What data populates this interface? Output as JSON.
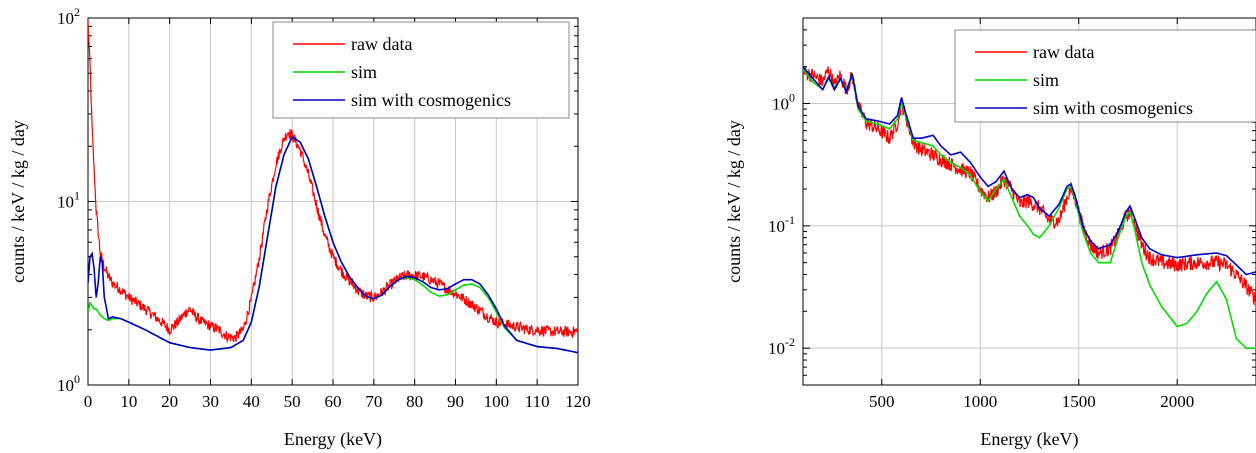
{
  "chart_data": [
    {
      "type": "line",
      "xlabel": "Energy (keV)",
      "ylabel": "counts / keV / kg / day",
      "xlim": [
        0,
        120
      ],
      "ylim": [
        1,
        100
      ],
      "yscale": "log",
      "grid": true,
      "legend_position": "top-right",
      "x_ticks": [
        "0",
        "10",
        "20",
        "30",
        "40",
        "50",
        "60",
        "70",
        "80",
        "90",
        "100",
        "110",
        "120"
      ],
      "y_ticks": [
        {
          "base": "10",
          "exp": "0"
        },
        {
          "base": "10",
          "exp": "1"
        },
        {
          "base": "10",
          "exp": "2"
        }
      ],
      "series": [
        {
          "name": "raw data",
          "color": "#ff0000",
          "noise": 0.03,
          "x": [
            0,
            0.5,
            1,
            2,
            3,
            4,
            5,
            6,
            8,
            10,
            12,
            14,
            16,
            18,
            20,
            22,
            24,
            25,
            26,
            28,
            30,
            32,
            34,
            36,
            38,
            40,
            42,
            44,
            46,
            48,
            49,
            50,
            52,
            54,
            56,
            58,
            60,
            62,
            64,
            66,
            68,
            70,
            72,
            74,
            76,
            78,
            80,
            82,
            84,
            86,
            88,
            90,
            92,
            94,
            96,
            98,
            100,
            102,
            104,
            106,
            108,
            110,
            112,
            114,
            116,
            118,
            120
          ],
          "y": [
            95,
            55,
            25,
            9,
            5.2,
            4.4,
            3.9,
            3.6,
            3.3,
            3.0,
            2.8,
            2.6,
            2.4,
            2.2,
            2.0,
            2.2,
            2.5,
            2.6,
            2.4,
            2.2,
            2.1,
            2.0,
            1.85,
            1.8,
            2.0,
            2.9,
            5.0,
            9.5,
            16,
            22,
            24,
            23,
            19,
            14,
            9.5,
            6.5,
            5.0,
            4.2,
            3.7,
            3.3,
            3.05,
            3.0,
            3.2,
            3.5,
            3.8,
            3.95,
            3.95,
            3.9,
            3.75,
            3.55,
            3.35,
            3.15,
            2.95,
            2.75,
            2.55,
            2.35,
            2.2,
            2.15,
            2.1,
            2.05,
            2.0,
            2.0,
            1.97,
            1.95,
            1.95,
            1.95,
            1.95
          ]
        },
        {
          "name": "sim",
          "color": "#00dd00",
          "noise": 0,
          "x": [
            0,
            0.5,
            1,
            1.5,
            2,
            3,
            4,
            5,
            6,
            8,
            10,
            14,
            20,
            25,
            30,
            35,
            38,
            40,
            42,
            44,
            46,
            48,
            50,
            52,
            54,
            56,
            58,
            60,
            62,
            64,
            66,
            68,
            70,
            72,
            74,
            76,
            78,
            80,
            82,
            84,
            86,
            88,
            90,
            92,
            94,
            96,
            98,
            100,
            102,
            105,
            110,
            115,
            120
          ],
          "y": [
            2.5,
            2.8,
            2.7,
            2.6,
            2.6,
            2.4,
            2.3,
            2.25,
            2.3,
            2.3,
            2.2,
            2.0,
            1.7,
            1.6,
            1.55,
            1.6,
            1.75,
            2.2,
            3.5,
            6.5,
            12,
            18,
            22.5,
            21,
            17,
            12,
            8.3,
            6.0,
            4.7,
            3.9,
            3.4,
            3.05,
            2.95,
            3.1,
            3.45,
            3.75,
            3.85,
            3.75,
            3.5,
            3.2,
            3.05,
            3.1,
            3.3,
            3.5,
            3.55,
            3.4,
            3.0,
            2.5,
            2.05,
            1.75,
            1.62,
            1.58,
            1.5
          ]
        },
        {
          "name": "sim with cosmogenics",
          "color": "#0000cc",
          "noise": 0,
          "x": [
            0,
            0.5,
            1,
            1.5,
            2,
            2.5,
            3,
            3.5,
            4,
            5,
            6,
            8,
            10,
            14,
            20,
            25,
            30,
            35,
            38,
            40,
            42,
            44,
            46,
            48,
            50,
            52,
            54,
            56,
            58,
            60,
            62,
            64,
            66,
            68,
            70,
            72,
            74,
            76,
            78,
            80,
            82,
            84,
            86,
            88,
            90,
            92,
            94,
            96,
            98,
            100,
            102,
            105,
            110,
            115,
            120
          ],
          "y": [
            3.6,
            5.0,
            5.2,
            4.3,
            3.0,
            3.6,
            5.0,
            4.6,
            3.0,
            2.3,
            2.35,
            2.3,
            2.2,
            2.0,
            1.7,
            1.6,
            1.55,
            1.6,
            1.75,
            2.2,
            3.5,
            6.5,
            12,
            18,
            22.5,
            21,
            17,
            12,
            8.3,
            6.0,
            4.7,
            3.9,
            3.4,
            3.05,
            2.95,
            3.1,
            3.45,
            3.75,
            3.9,
            3.85,
            3.65,
            3.4,
            3.3,
            3.35,
            3.55,
            3.75,
            3.75,
            3.55,
            3.1,
            2.6,
            2.1,
            1.75,
            1.62,
            1.58,
            1.5
          ]
        }
      ]
    },
    {
      "type": "line",
      "xlabel": "Energy (keV)",
      "ylabel": "counts / keV / kg / day",
      "xlim": [
        100,
        2400
      ],
      "ylim": [
        0.005,
        5
      ],
      "yscale": "log",
      "grid": true,
      "legend_position": "top-right",
      "x_ticks": [
        "500",
        "1000",
        "1500",
        "2000"
      ],
      "y_ticks": [
        {
          "base": "10",
          "exp": "-2"
        },
        {
          "base": "10",
          "exp": "-1"
        },
        {
          "base": "10",
          "exp": "0"
        }
      ],
      "series": [
        {
          "name": "raw data",
          "color": "#ff0000",
          "noise": 0.06,
          "x": [
            100,
            150,
            200,
            230,
            260,
            290,
            320,
            350,
            380,
            420,
            480,
            540,
            580,
            600,
            620,
            660,
            700,
            760,
            800,
            850,
            900,
            950,
            1000,
            1040,
            1080,
            1120,
            1160,
            1200,
            1240,
            1270,
            1300,
            1350,
            1400,
            1440,
            1460,
            1480,
            1520,
            1560,
            1600,
            1660,
            1700,
            1740,
            1760,
            1780,
            1820,
            1860,
            1920,
            2000,
            2100,
            2200,
            2250,
            2300,
            2350,
            2400
          ],
          "y": [
            1.8,
            1.7,
            1.5,
            1.9,
            1.4,
            1.7,
            1.3,
            1.7,
            0.95,
            0.7,
            0.62,
            0.52,
            0.7,
            1.0,
            0.8,
            0.48,
            0.42,
            0.38,
            0.35,
            0.32,
            0.29,
            0.27,
            0.2,
            0.17,
            0.19,
            0.24,
            0.2,
            0.15,
            0.16,
            0.15,
            0.14,
            0.11,
            0.11,
            0.17,
            0.2,
            0.17,
            0.1,
            0.07,
            0.06,
            0.065,
            0.085,
            0.12,
            0.13,
            0.11,
            0.07,
            0.055,
            0.05,
            0.048,
            0.05,
            0.05,
            0.048,
            0.04,
            0.032,
            0.025
          ]
        },
        {
          "name": "sim",
          "color": "#00dd00",
          "noise": 0,
          "x": [
            100,
            150,
            200,
            230,
            260,
            290,
            320,
            350,
            380,
            420,
            480,
            540,
            580,
            600,
            620,
            660,
            700,
            760,
            800,
            850,
            900,
            950,
            1000,
            1040,
            1080,
            1120,
            1160,
            1200,
            1240,
            1270,
            1300,
            1350,
            1400,
            1440,
            1460,
            1480,
            1520,
            1560,
            1600,
            1660,
            1700,
            1740,
            1760,
            1780,
            1820,
            1860,
            1920,
            2000,
            2050,
            2100,
            2150,
            2200,
            2250,
            2300,
            2350,
            2400
          ],
          "y": [
            1.9,
            1.5,
            1.3,
            1.6,
            1.35,
            1.6,
            1.3,
            1.7,
            0.9,
            0.72,
            0.68,
            0.62,
            0.75,
            1.05,
            0.8,
            0.5,
            0.48,
            0.45,
            0.38,
            0.33,
            0.3,
            0.26,
            0.19,
            0.16,
            0.2,
            0.24,
            0.17,
            0.12,
            0.1,
            0.085,
            0.08,
            0.1,
            0.14,
            0.2,
            0.21,
            0.17,
            0.09,
            0.06,
            0.05,
            0.05,
            0.08,
            0.12,
            0.13,
            0.1,
            0.05,
            0.033,
            0.022,
            0.015,
            0.016,
            0.02,
            0.028,
            0.035,
            0.025,
            0.012,
            0.01,
            0.01
          ]
        },
        {
          "name": "sim with cosmogenics",
          "color": "#0000cc",
          "noise": 0,
          "x": [
            100,
            150,
            200,
            230,
            260,
            290,
            320,
            350,
            380,
            420,
            480,
            540,
            580,
            600,
            620,
            660,
            700,
            760,
            800,
            850,
            900,
            950,
            1000,
            1040,
            1080,
            1120,
            1160,
            1200,
            1240,
            1270,
            1300,
            1350,
            1400,
            1440,
            1460,
            1480,
            1520,
            1560,
            1600,
            1660,
            1700,
            1740,
            1760,
            1780,
            1820,
            1860,
            1920,
            2000,
            2100,
            2200,
            2250,
            2300,
            2350,
            2400
          ],
          "y": [
            2.0,
            1.6,
            1.3,
            1.65,
            1.3,
            1.6,
            1.25,
            1.75,
            0.95,
            0.75,
            0.72,
            0.68,
            0.8,
            1.12,
            0.85,
            0.52,
            0.52,
            0.55,
            0.45,
            0.38,
            0.4,
            0.33,
            0.25,
            0.21,
            0.23,
            0.28,
            0.2,
            0.17,
            0.18,
            0.17,
            0.14,
            0.12,
            0.15,
            0.21,
            0.22,
            0.18,
            0.1,
            0.075,
            0.065,
            0.07,
            0.09,
            0.13,
            0.145,
            0.12,
            0.08,
            0.065,
            0.058,
            0.055,
            0.058,
            0.06,
            0.057,
            0.048,
            0.04,
            0.042
          ]
        }
      ]
    }
  ]
}
